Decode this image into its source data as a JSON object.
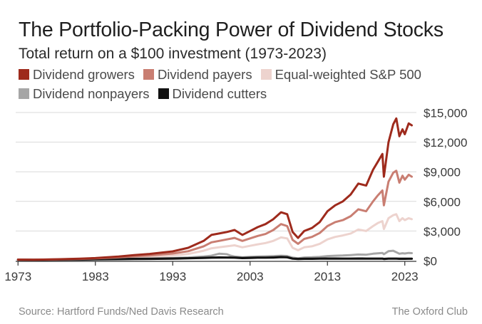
{
  "title": "The Portfolio-Packing Power of Dividend Stocks",
  "subtitle": "Total return on a $100 investment (1973-2023)",
  "source": "Source: Hartford Funds/Ned Davis Research",
  "credit": "The Oxford Club",
  "chart_data": {
    "type": "line",
    "title": "The Portfolio-Packing Power of Dividend Stocks",
    "subtitle": "Total return on a $100 investment (1973-2023)",
    "xlabel": "",
    "ylabel": "",
    "xlim": [
      1972.7,
      2024.5
    ],
    "ylim": [
      0,
      15000
    ],
    "x_ticks": [
      1973,
      1983,
      1993,
      2003,
      2013,
      2023
    ],
    "x_tick_labels": [
      "1973",
      "1983",
      "1993",
      "2003",
      "2013",
      "2023"
    ],
    "y_ticks": [
      0,
      3000,
      6000,
      9000,
      12000,
      15000
    ],
    "y_tick_labels": [
      "$0",
      "$3,000",
      "$6,000",
      "$9,000",
      "$12,000",
      "$15,000"
    ],
    "y_axis_side": "right",
    "grid": true,
    "legend_position": "top",
    "series": [
      {
        "name": "Dividend growers",
        "color": "#9e2a1c",
        "x": [
          1973,
          1975,
          1978,
          1981,
          1983,
          1986,
          1988,
          1990,
          1993,
          1995,
          1997,
          1998,
          1999,
          2000,
          2001,
          2002,
          2003,
          2004,
          2005,
          2006,
          2007,
          2007.8,
          2008.5,
          2009.2,
          2010,
          2011,
          2012,
          2013,
          2014,
          2015,
          2016,
          2017,
          2018,
          2018.9,
          2019.5,
          2020.1,
          2020.3,
          2020.9,
          2021.5,
          2021.9,
          2022.3,
          2022.7,
          2023,
          2023.5,
          2023.9
        ],
        "y": [
          100,
          95,
          140,
          200,
          260,
          420,
          560,
          680,
          940,
          1300,
          2000,
          2600,
          2750,
          2900,
          3100,
          2600,
          3000,
          3400,
          3700,
          4200,
          4900,
          4700,
          2900,
          2300,
          3000,
          3300,
          3900,
          5000,
          5600,
          6000,
          6700,
          7800,
          7600,
          9200,
          10000,
          10800,
          8500,
          12000,
          13800,
          14400,
          12600,
          13300,
          12800,
          13900,
          13700
        ]
      },
      {
        "name": "Dividend payers",
        "color": "#c97e72",
        "x": [
          1973,
          1975,
          1978,
          1981,
          1983,
          1986,
          1988,
          1990,
          1993,
          1995,
          1997,
          1998,
          1999,
          2000,
          2001,
          2002,
          2003,
          2004,
          2005,
          2006,
          2007,
          2007.8,
          2008.5,
          2009.2,
          2010,
          2011,
          2012,
          2013,
          2014,
          2015,
          2016,
          2017,
          2018,
          2018.9,
          2019.5,
          2020.1,
          2020.3,
          2020.9,
          2021.5,
          2021.9,
          2022.3,
          2022.7,
          2023,
          2023.5,
          2023.9
        ],
        "y": [
          100,
          90,
          120,
          170,
          220,
          330,
          430,
          520,
          720,
          950,
          1450,
          1850,
          2000,
          2150,
          2300,
          2000,
          2250,
          2500,
          2700,
          3100,
          3700,
          3500,
          2100,
          1700,
          2200,
          2400,
          2800,
          3500,
          3900,
          4100,
          4500,
          5200,
          5000,
          6000,
          6600,
          7100,
          5600,
          8000,
          8900,
          9100,
          7900,
          8600,
          8200,
          8700,
          8500
        ]
      },
      {
        "name": "Equal-weighted S&P 500",
        "color": "#edd3ce",
        "x": [
          1973,
          1975,
          1978,
          1981,
          1983,
          1986,
          1988,
          1990,
          1993,
          1995,
          1997,
          1998,
          1999,
          2000,
          2001,
          2002,
          2003,
          2004,
          2005,
          2006,
          2007,
          2007.8,
          2008.5,
          2009.2,
          2010,
          2011,
          2012,
          2013,
          2014,
          2015,
          2016,
          2017,
          2018,
          2018.9,
          2019.5,
          2020.1,
          2020.3,
          2020.9,
          2021.5,
          2021.9,
          2022.3,
          2022.7,
          2023,
          2023.5,
          2023.9
        ],
        "y": [
          100,
          85,
          105,
          140,
          180,
          250,
          320,
          380,
          520,
          680,
          1000,
          1250,
          1350,
          1450,
          1550,
          1350,
          1500,
          1650,
          1780,
          2000,
          2350,
          2250,
          1300,
          1050,
          1350,
          1450,
          1700,
          2150,
          2400,
          2550,
          2750,
          3150,
          3000,
          3500,
          3800,
          4000,
          3200,
          4300,
          4600,
          4700,
          4000,
          4300,
          4100,
          4300,
          4200
        ]
      },
      {
        "name": "Dividend nonpayers",
        "color": "#a6a6a6",
        "x": [
          1973,
          1975,
          1978,
          1981,
          1983,
          1986,
          1988,
          1990,
          1993,
          1995,
          1997,
          1998,
          1999,
          2000,
          2000.5,
          2001,
          2002,
          2003,
          2004,
          2005,
          2006,
          2007,
          2007.8,
          2008.5,
          2009.2,
          2010,
          2011,
          2012,
          2013,
          2014,
          2015,
          2016,
          2017,
          2018,
          2018.9,
          2019.5,
          2020.1,
          2020.3,
          2020.9,
          2021.5,
          2021.9,
          2022.3,
          2022.7,
          2023,
          2023.5,
          2023.9
        ],
        "y": [
          100,
          70,
          85,
          110,
          140,
          170,
          200,
          210,
          260,
          320,
          420,
          500,
          700,
          650,
          500,
          420,
          330,
          380,
          420,
          430,
          460,
          500,
          470,
          300,
          240,
          320,
          340,
          380,
          460,
          500,
          520,
          560,
          620,
          600,
          700,
          740,
          780,
          650,
          950,
          1000,
          850,
          700,
          750,
          720,
          780,
          760
        ]
      },
      {
        "name": "Dividend cutters",
        "color": "#111111",
        "x": [
          1973,
          1975,
          1978,
          1981,
          1983,
          1986,
          1988,
          1990,
          1993,
          1995,
          1997,
          1998,
          1999,
          2000,
          2001,
          2002,
          2003,
          2004,
          2005,
          2006,
          2007,
          2007.8,
          2008.5,
          2009.2,
          2010,
          2011,
          2012,
          2013,
          2014,
          2015,
          2016,
          2017,
          2018,
          2018.9,
          2019.5,
          2020.1,
          2020.3,
          2020.9,
          2021.5,
          2021.9,
          2022.3,
          2022.7,
          2023,
          2023.5,
          2023.9
        ],
        "y": [
          100,
          80,
          95,
          110,
          130,
          150,
          170,
          180,
          210,
          240,
          280,
          300,
          320,
          310,
          300,
          260,
          280,
          300,
          300,
          320,
          360,
          340,
          200,
          170,
          190,
          190,
          200,
          210,
          210,
          200,
          200,
          210,
          200,
          200,
          200,
          200,
          170,
          200,
          200,
          200,
          190,
          190,
          190,
          195,
          195
        ]
      }
    ]
  }
}
